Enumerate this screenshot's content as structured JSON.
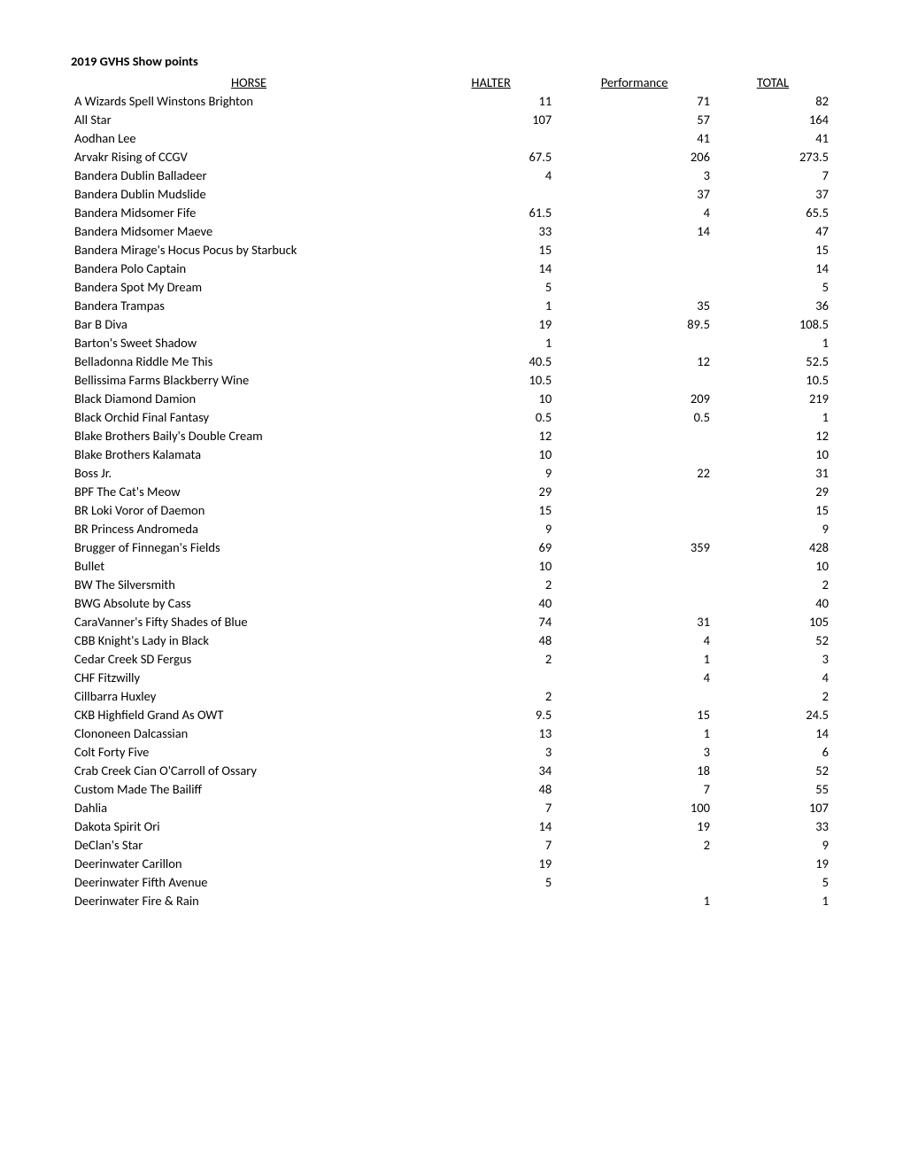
{
  "title": "2019 GVHS Show points",
  "columns": {
    "horse": "HORSE",
    "halter": "HALTER",
    "performance": "Performance ",
    "total": "TOTAL"
  },
  "rows": [
    {
      "horse": "A Wizards Spell Winstons Brighton",
      "halter": "11",
      "performance": "71",
      "total": "82"
    },
    {
      "horse": "All Star",
      "halter": "107",
      "performance": "57",
      "total": "164"
    },
    {
      "horse": "Aodhan Lee",
      "halter": "",
      "performance": "41",
      "total": "41"
    },
    {
      "horse": "Arvakr Rising of CCGV",
      "halter": "67.5",
      "performance": "206",
      "total": "273.5"
    },
    {
      "horse": "Bandera Dublin Balladeer",
      "halter": "4",
      "performance": "3",
      "total": "7"
    },
    {
      "horse": "Bandera Dublin Mudslide",
      "halter": "",
      "performance": "37",
      "total": "37"
    },
    {
      "horse": "Bandera Midsomer Fife",
      "halter": "61.5",
      "performance": "4",
      "total": "65.5"
    },
    {
      "horse": "Bandera Midsomer Maeve",
      "halter": "33",
      "performance": "14",
      "total": "47"
    },
    {
      "horse": "Bandera Mirage's Hocus Pocus by Starbuck",
      "halter": "15",
      "performance": "",
      "total": "15"
    },
    {
      "horse": "Bandera Polo Captain",
      "halter": "14",
      "performance": "",
      "total": "14"
    },
    {
      "horse": "Bandera Spot My Dream",
      "halter": "5",
      "performance": "",
      "total": "5"
    },
    {
      "horse": "Bandera Trampas",
      "halter": "1",
      "performance": "35",
      "total": "36"
    },
    {
      "horse": "Bar B Diva",
      "halter": "19",
      "performance": "89.5",
      "total": "108.5"
    },
    {
      "horse": "Barton's Sweet Shadow",
      "halter": "1",
      "performance": "",
      "total": "1"
    },
    {
      "horse": "Belladonna Riddle Me This",
      "halter": "40.5",
      "performance": "12",
      "total": "52.5"
    },
    {
      "horse": "Bellissima Farms Blackberry Wine",
      "halter": "10.5",
      "performance": "",
      "total": "10.5"
    },
    {
      "horse": "Black Diamond Damion",
      "halter": "10",
      "performance": "209",
      "total": "219"
    },
    {
      "horse": "Black Orchid Final Fantasy",
      "halter": "0.5",
      "performance": "0.5",
      "total": "1"
    },
    {
      "horse": "Blake Brothers Baily's Double Cream",
      "halter": "12",
      "performance": "",
      "total": "12"
    },
    {
      "horse": "Blake Brothers Kalamata",
      "halter": "10",
      "performance": "",
      "total": "10"
    },
    {
      "horse": "Boss Jr.",
      "halter": "9",
      "performance": "22",
      "total": "31"
    },
    {
      "horse": "BPF The Cat's Meow",
      "halter": "29",
      "performance": "",
      "total": "29"
    },
    {
      "horse": "BR Loki Voror of Daemon",
      "halter": "15",
      "performance": "",
      "total": "15"
    },
    {
      "horse": "BR Princess Andromeda",
      "halter": "9",
      "performance": "",
      "total": "9"
    },
    {
      "horse": "Brugger of Finnegan's Fields",
      "halter": "69",
      "performance": "359",
      "total": "428"
    },
    {
      "horse": "Bullet",
      "halter": "10",
      "performance": "",
      "total": "10"
    },
    {
      "horse": "BW The Silversmith",
      "halter": "2",
      "performance": "",
      "total": "2"
    },
    {
      "horse": "BWG Absolute by Cass",
      "halter": "40",
      "performance": "",
      "total": "40"
    },
    {
      "horse": "CaraVanner's Fifty Shades of Blue",
      "halter": "74",
      "performance": "31",
      "total": "105"
    },
    {
      "horse": "CBB Knight's Lady in Black",
      "halter": "48",
      "performance": "4",
      "total": "52"
    },
    {
      "horse": "Cedar Creek SD Fergus",
      "halter": "2",
      "performance": "1",
      "total": "3"
    },
    {
      "horse": "CHF Fitzwilly",
      "halter": "",
      "performance": "4",
      "total": "4"
    },
    {
      "horse": "Cillbarra Huxley",
      "halter": "2",
      "performance": "",
      "total": "2"
    },
    {
      "horse": "CKB Highfield Grand As OWT",
      "halter": "9.5",
      "performance": "15",
      "total": "24.5"
    },
    {
      "horse": "Clononeen Dalcassian",
      "halter": "13",
      "performance": "1",
      "total": "14"
    },
    {
      "horse": "Colt Forty Five",
      "halter": "3",
      "performance": "3",
      "total": "6"
    },
    {
      "horse": "Crab Creek Cian O'Carroll of Ossary",
      "halter": "34",
      "performance": "18",
      "total": "52"
    },
    {
      "horse": "Custom Made The Bailiff",
      "halter": "48",
      "performance": "7",
      "total": "55"
    },
    {
      "horse": "Dahlia",
      "halter": "7",
      "performance": "100",
      "total": "107"
    },
    {
      "horse": "Dakota Spirit Ori",
      "halter": "14",
      "performance": "19",
      "total": "33"
    },
    {
      "horse": "DeClan's Star",
      "halter": "7",
      "performance": "2",
      "total": "9"
    },
    {
      "horse": "Deerinwater Carillon",
      "halter": "19",
      "performance": "",
      "total": "19"
    },
    {
      "horse": "Deerinwater Fifth Avenue",
      "halter": "5",
      "performance": "",
      "total": "5"
    },
    {
      "horse": "Deerinwater Fire & Rain",
      "halter": "",
      "performance": "1",
      "total": "1"
    }
  ]
}
